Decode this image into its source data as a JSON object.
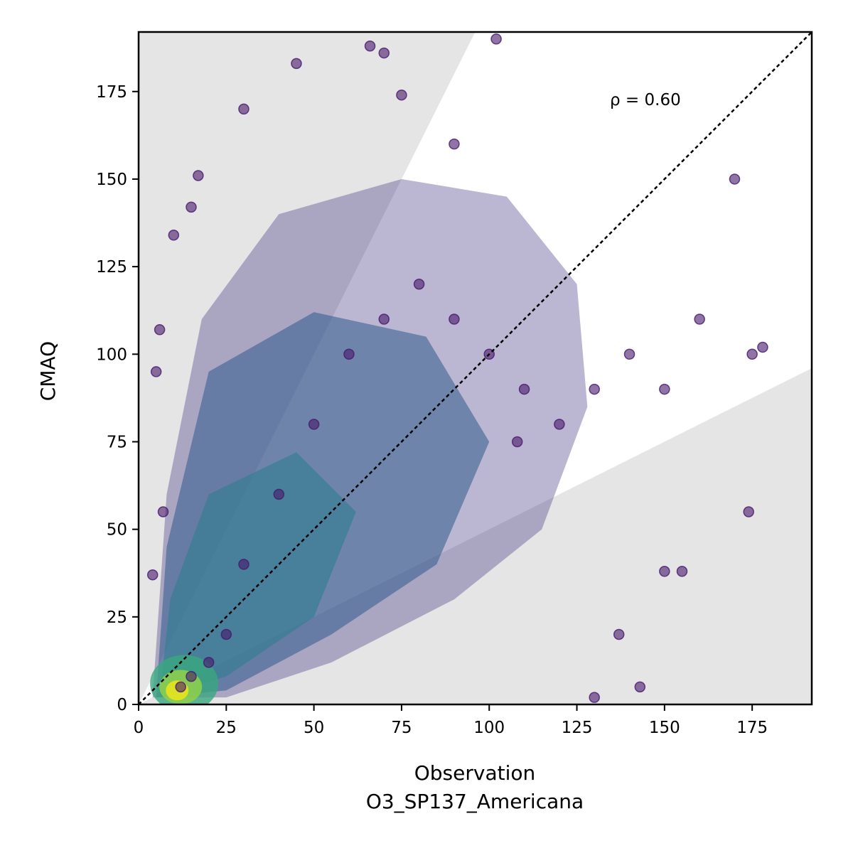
{
  "chart_data": {
    "type": "scatter",
    "xlabel": "Observation",
    "xlabel_sub": "O3_SP137_Americana",
    "ylabel": "CMAQ",
    "xlim": [
      0,
      192
    ],
    "ylim": [
      0,
      192
    ],
    "xticks": [
      0,
      25,
      50,
      75,
      100,
      125,
      150,
      175
    ],
    "yticks": [
      0,
      25,
      50,
      75,
      100,
      125,
      150,
      175
    ],
    "annotation": "ρ = 0.60",
    "reference_line": "1:1",
    "point_color_scale": "viridis (density)",
    "shaded_bounds": {
      "upper_slope": 2.0,
      "lower_slope": 0.5,
      "fill": "#e5e5e5"
    },
    "approx_points": [
      [
        12,
        5
      ],
      [
        15,
        8
      ],
      [
        20,
        12
      ],
      [
        25,
        20
      ],
      [
        30,
        40
      ],
      [
        40,
        60
      ],
      [
        50,
        80
      ],
      [
        60,
        100
      ],
      [
        70,
        110
      ],
      [
        80,
        120
      ],
      [
        90,
        110
      ],
      [
        100,
        100
      ],
      [
        110,
        90
      ],
      [
        120,
        80
      ],
      [
        130,
        90
      ],
      [
        140,
        100
      ],
      [
        150,
        90
      ],
      [
        160,
        110
      ],
      [
        170,
        150
      ],
      [
        175,
        100
      ],
      [
        178,
        102
      ],
      [
        174,
        55
      ],
      [
        155,
        38
      ],
      [
        150,
        38
      ],
      [
        137,
        20
      ],
      [
        143,
        5
      ],
      [
        130,
        2
      ],
      [
        108,
        75
      ],
      [
        90,
        160
      ],
      [
        75,
        174
      ],
      [
        66,
        188
      ],
      [
        70,
        186
      ],
      [
        102,
        190
      ],
      [
        45,
        183
      ],
      [
        30,
        170
      ],
      [
        5,
        95
      ],
      [
        6,
        107
      ],
      [
        7,
        55
      ],
      [
        4,
        37
      ],
      [
        10,
        134
      ],
      [
        15,
        142
      ],
      [
        17,
        151
      ]
    ]
  }
}
